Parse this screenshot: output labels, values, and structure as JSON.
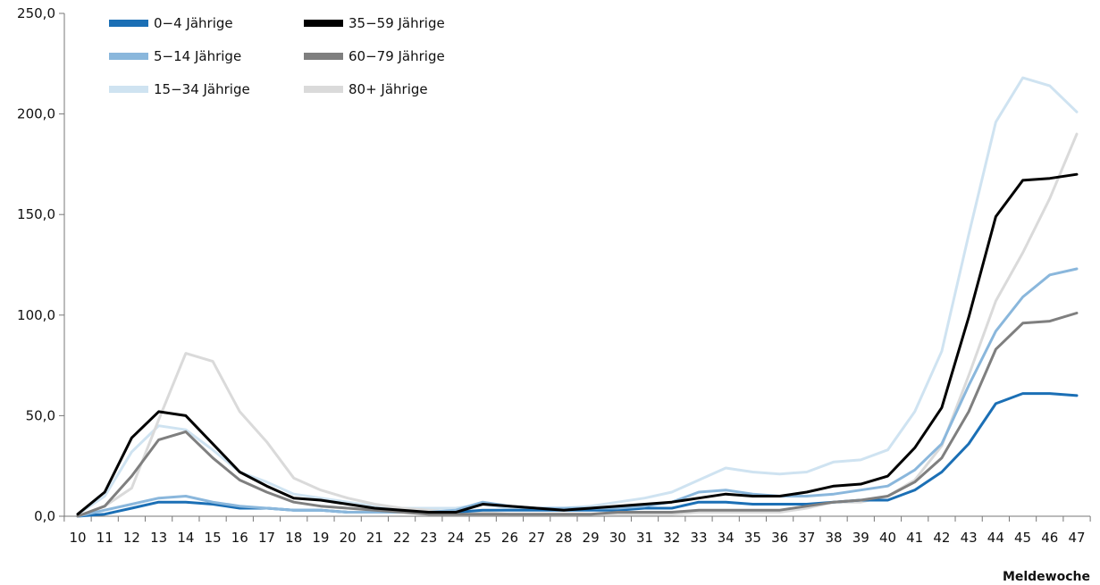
{
  "chart_data": {
    "type": "line",
    "title": "",
    "xlabel": "Meldewoche",
    "ylabel": "",
    "ylim": [
      0,
      250
    ],
    "y_ticks": [
      0,
      50,
      100,
      150,
      200,
      250
    ],
    "y_tick_labels": [
      "0,0",
      "50,0",
      "100,0",
      "150,0",
      "200,0",
      "250,0"
    ],
    "grid": false,
    "legend_position": "top-left",
    "x": [
      10,
      11,
      12,
      13,
      14,
      15,
      16,
      17,
      18,
      19,
      20,
      21,
      22,
      23,
      24,
      25,
      26,
      27,
      28,
      29,
      30,
      31,
      32,
      33,
      34,
      35,
      36,
      37,
      38,
      39,
      40,
      41,
      42,
      43,
      44,
      45,
      46,
      47
    ],
    "x_tick_labels": [
      "10",
      "11",
      "12",
      "13",
      "14",
      "15",
      "16",
      "17",
      "18",
      "19",
      "20",
      "21",
      "22",
      "23",
      "24",
      "25",
      "26",
      "27",
      "28",
      "29",
      "30",
      "31",
      "32",
      "33",
      "34",
      "35",
      "36",
      "37",
      "38",
      "39",
      "40",
      "41",
      "42",
      "43",
      "44",
      "45",
      "46",
      "47"
    ],
    "series": [
      {
        "name": "15−34 Jährige",
        "color": "#cfe3f1",
        "values": [
          1,
          10,
          32,
          45,
          43,
          33,
          22,
          17,
          11,
          9,
          7,
          5,
          4,
          4,
          4,
          6,
          4,
          4,
          4,
          5,
          7,
          9,
          12,
          18,
          24,
          22,
          21,
          22,
          27,
          28,
          33,
          52,
          82,
          140,
          196,
          218,
          214,
          201
        ]
      },
      {
        "name": "80+ Jährige",
        "color": "#dadada",
        "values": [
          0,
          5,
          14,
          48,
          81,
          77,
          52,
          37,
          19,
          13,
          9,
          6,
          4,
          3,
          2,
          2,
          1,
          1,
          1,
          1,
          1,
          1,
          1,
          2,
          2,
          2,
          2,
          4,
          7,
          7,
          10,
          18,
          35,
          70,
          107,
          131,
          158,
          190
        ]
      },
      {
        "name": "0−4 Jährige",
        "color": "#1b6fb5",
        "values": [
          0,
          1,
          4,
          7,
          7,
          6,
          4,
          4,
          3,
          3,
          2,
          2,
          2,
          2,
          2,
          3,
          3,
          3,
          3,
          3,
          3,
          4,
          4,
          7,
          7,
          6,
          6,
          6,
          7,
          8,
          8,
          13,
          22,
          36,
          56,
          61,
          61,
          60
        ]
      },
      {
        "name": "5−14 Jährige",
        "color": "#8ab7dc",
        "values": [
          0,
          3,
          6,
          9,
          10,
          7,
          5,
          4,
          3,
          3,
          2,
          2,
          2,
          2,
          3,
          7,
          5,
          4,
          4,
          4,
          4,
          5,
          7,
          12,
          13,
          11,
          10,
          10,
          11,
          13,
          15,
          23,
          36,
          65,
          92,
          109,
          120,
          123
        ]
      },
      {
        "name": "60−79 Jährige",
        "color": "#7f7f7f",
        "values": [
          0,
          5,
          20,
          38,
          42,
          29,
          18,
          12,
          7,
          5,
          4,
          3,
          2,
          1,
          1,
          1,
          1,
          1,
          1,
          1,
          2,
          2,
          2,
          3,
          3,
          3,
          3,
          5,
          7,
          8,
          10,
          17,
          29,
          52,
          83,
          96,
          97,
          101
        ]
      },
      {
        "name": "35−59 Jährige",
        "color": "#000000",
        "values": [
          1,
          12,
          39,
          52,
          50,
          36,
          22,
          15,
          9,
          8,
          6,
          4,
          3,
          2,
          2,
          6,
          5,
          4,
          3,
          4,
          5,
          6,
          7,
          9,
          11,
          10,
          10,
          12,
          15,
          16,
          20,
          34,
          54,
          99,
          149,
          167,
          168,
          170
        ]
      }
    ],
    "legend": [
      {
        "label": "0−4 Jährige",
        "color": "#1b6fb5"
      },
      {
        "label": "35−59 Jährige",
        "color": "#000000"
      },
      {
        "label": "5−14 Jährige",
        "color": "#8ab7dc"
      },
      {
        "label": "60−79 Jährige",
        "color": "#7f7f7f"
      },
      {
        "label": "15−34 Jährige",
        "color": "#cfe3f1"
      },
      {
        "label": "80+ Jährige",
        "color": "#dadada"
      }
    ]
  }
}
